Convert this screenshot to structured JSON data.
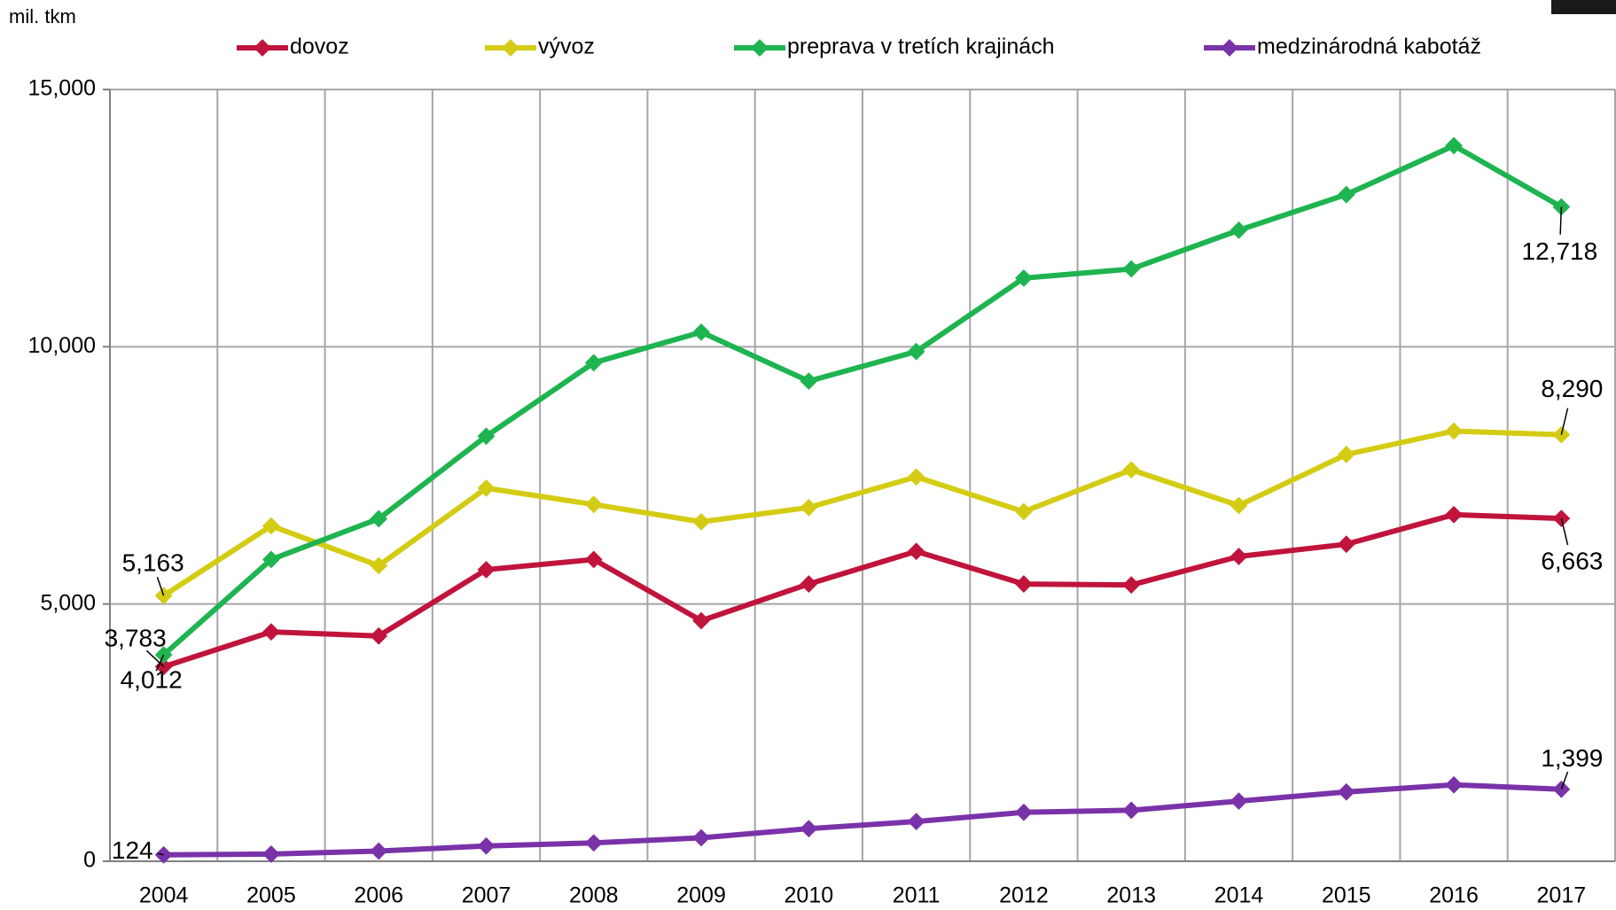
{
  "chart_data": {
    "type": "line",
    "y_label": "mil. tkm",
    "categories": [
      "2004",
      "2005",
      "2006",
      "2007",
      "2008",
      "2009",
      "2010",
      "2011",
      "2012",
      "2013",
      "2014",
      "2015",
      "2016",
      "2017"
    ],
    "series": [
      {
        "name": "dovoz",
        "color": "#c0143c",
        "values": [
          3783,
          4458,
          4379,
          5667,
          5865,
          4676,
          5389,
          6023,
          5389,
          5370,
          5924,
          6162,
          6737,
          6663
        ],
        "value_labels": [
          "3,783",
          null,
          null,
          null,
          null,
          null,
          null,
          null,
          null,
          null,
          null,
          null,
          null,
          "6,663"
        ]
      },
      {
        "name": "vývoz",
        "color": "#d4cc14",
        "values": [
          5163,
          6519,
          5746,
          7252,
          6935,
          6598,
          6875,
          7470,
          6796,
          7608,
          6915,
          7906,
          8361,
          8290
        ],
        "value_labels": [
          "5,163",
          null,
          null,
          null,
          null,
          null,
          null,
          null,
          null,
          null,
          null,
          null,
          null,
          "8,290"
        ]
      },
      {
        "name": "preprava v tretích krajinách",
        "color": "#1eb450",
        "values": [
          4012,
          5865,
          6657,
          8262,
          9689,
          10284,
          9332,
          9907,
          11334,
          11512,
          12265,
          12958,
          13909,
          12718
        ],
        "value_labels": [
          "4,012",
          null,
          null,
          null,
          null,
          null,
          null,
          null,
          null,
          null,
          null,
          null,
          null,
          "12,718"
        ]
      },
      {
        "name": "medzinárodná kabotáž",
        "color": "#7a32a8",
        "values": [
          124,
          139,
          198,
          297,
          357,
          456,
          634,
          773,
          951,
          991,
          1169,
          1347,
          1486,
          1399
        ],
        "value_labels": [
          "124",
          null,
          null,
          null,
          null,
          null,
          null,
          null,
          null,
          null,
          null,
          null,
          null,
          "1,399"
        ]
      }
    ],
    "ylim": [
      0,
      15000
    ],
    "yticks": [
      0,
      {
        "value": 5000,
        "label": "5,000"
      },
      {
        "value": 10000,
        "label": "10,000"
      },
      {
        "value": 15000,
        "label": "15,000"
      }
    ],
    "grid": true,
    "legend": "top"
  }
}
